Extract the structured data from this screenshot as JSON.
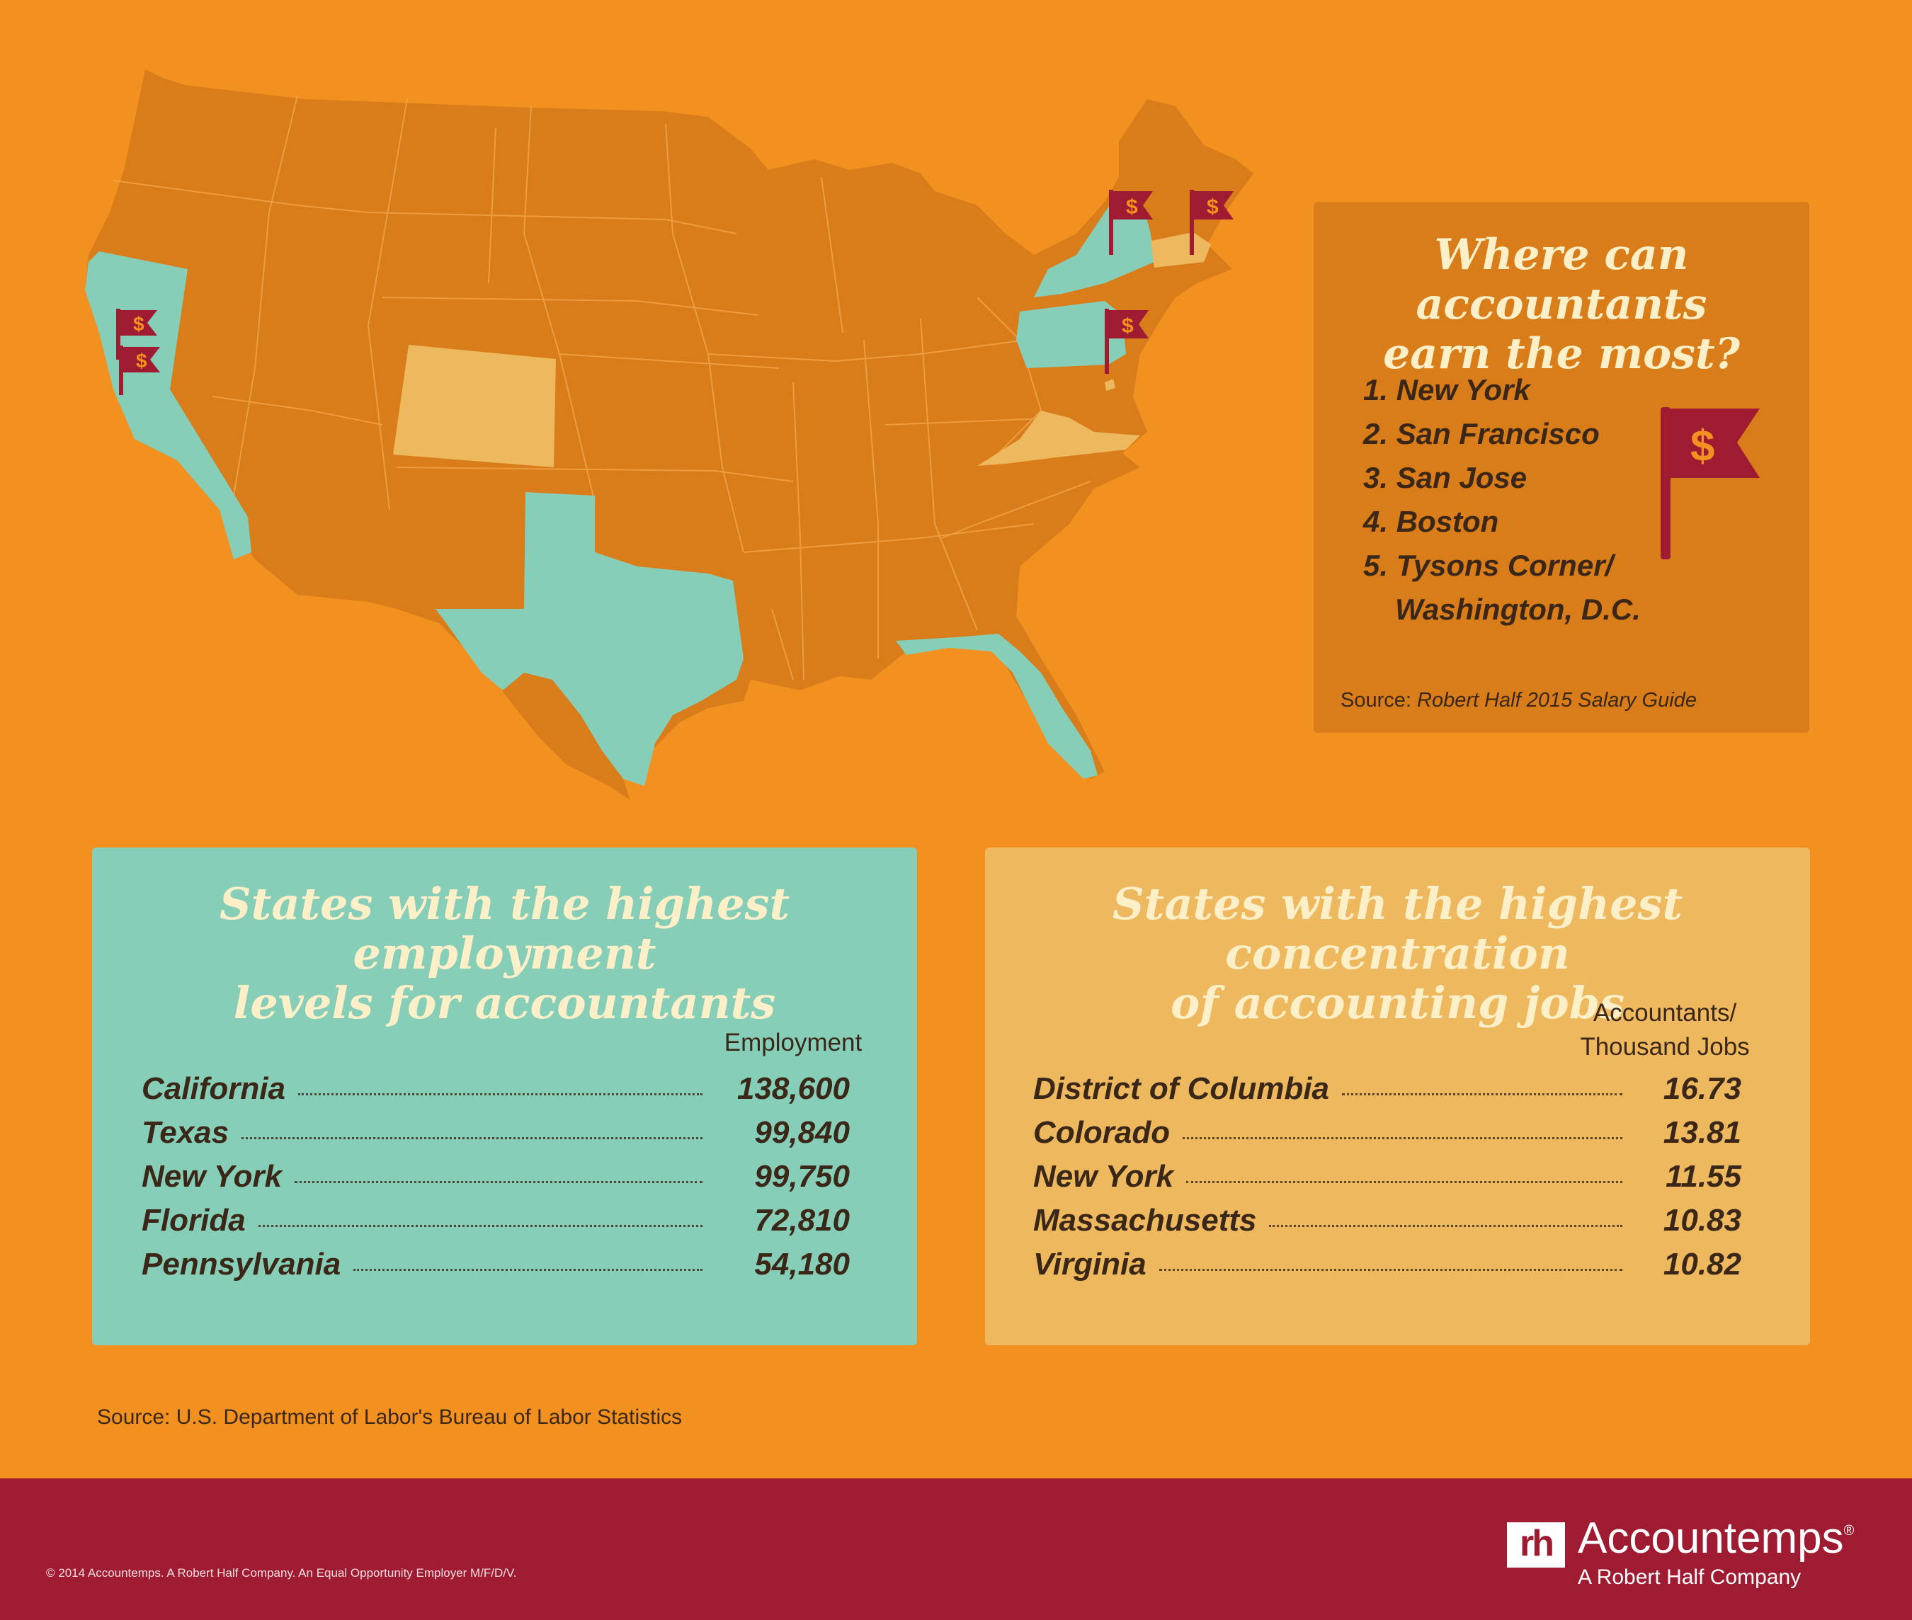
{
  "colors": {
    "background": "#f29120",
    "state_default": "#d97c1a",
    "state_employment": "#86ceb8",
    "state_concentration": "#edb85e",
    "flag": "#9e1b32",
    "footer": "#9e1b32",
    "text_dark": "#3b2718"
  },
  "map": {
    "flag_symbol": "$",
    "highlighted_employment": [
      "California",
      "Texas",
      "New York",
      "Florida",
      "Pennsylvania"
    ],
    "highlighted_concentration": [
      "Colorado",
      "Massachusetts",
      "Virginia",
      "District of Columbia"
    ],
    "flag_cities": [
      "New York",
      "San Francisco",
      "San Jose",
      "Boston",
      "Tysons Corner/Washington, D.C."
    ]
  },
  "earn": {
    "title_line1": "Where can accountants",
    "title_line2": "earn the most?",
    "items": [
      "1. New York",
      "2. San Francisco",
      "3. San Jose",
      "4. Boston",
      "5. Tysons Corner/"
    ],
    "item5_line2": "Washington, D.C.",
    "source_prefix": "Source: ",
    "source_title": "Robert Half 2015 Salary Guide",
    "flag_symbol": "$"
  },
  "employment": {
    "title_line1": "States with the highest employment",
    "title_line2": "levels for accountants",
    "column_header": "Employment",
    "rows": [
      {
        "state": "California",
        "value": "138,600"
      },
      {
        "state": "Texas",
        "value": "99,840"
      },
      {
        "state": "New York",
        "value": "99,750"
      },
      {
        "state": "Florida",
        "value": "72,810"
      },
      {
        "state": "Pennsylvania",
        "value": "54,180"
      }
    ]
  },
  "concentration": {
    "title_line1": "States with the highest concentration",
    "title_line2": "of accounting jobs",
    "column_header_line1": "Accountants/",
    "column_header_line2": "Thousand Jobs",
    "rows": [
      {
        "state": "District of Columbia",
        "value": "16.73"
      },
      {
        "state": "Colorado",
        "value": "13.81"
      },
      {
        "state": "New York",
        "value": "11.55"
      },
      {
        "state": "Massachusetts",
        "value": "10.83"
      },
      {
        "state": "Virginia",
        "value": "10.82"
      }
    ]
  },
  "bls_source": "Source: U.S. Department of Labor's Bureau of Labor Statistics",
  "footer": {
    "copyright": "© 2014 Accountemps. A Robert Half Company. An Equal Opportunity Employer M/F/D/V.",
    "logo_mark": "rh",
    "brand": "Accountemps",
    "registered": "®",
    "tagline": "A Robert Half Company"
  }
}
